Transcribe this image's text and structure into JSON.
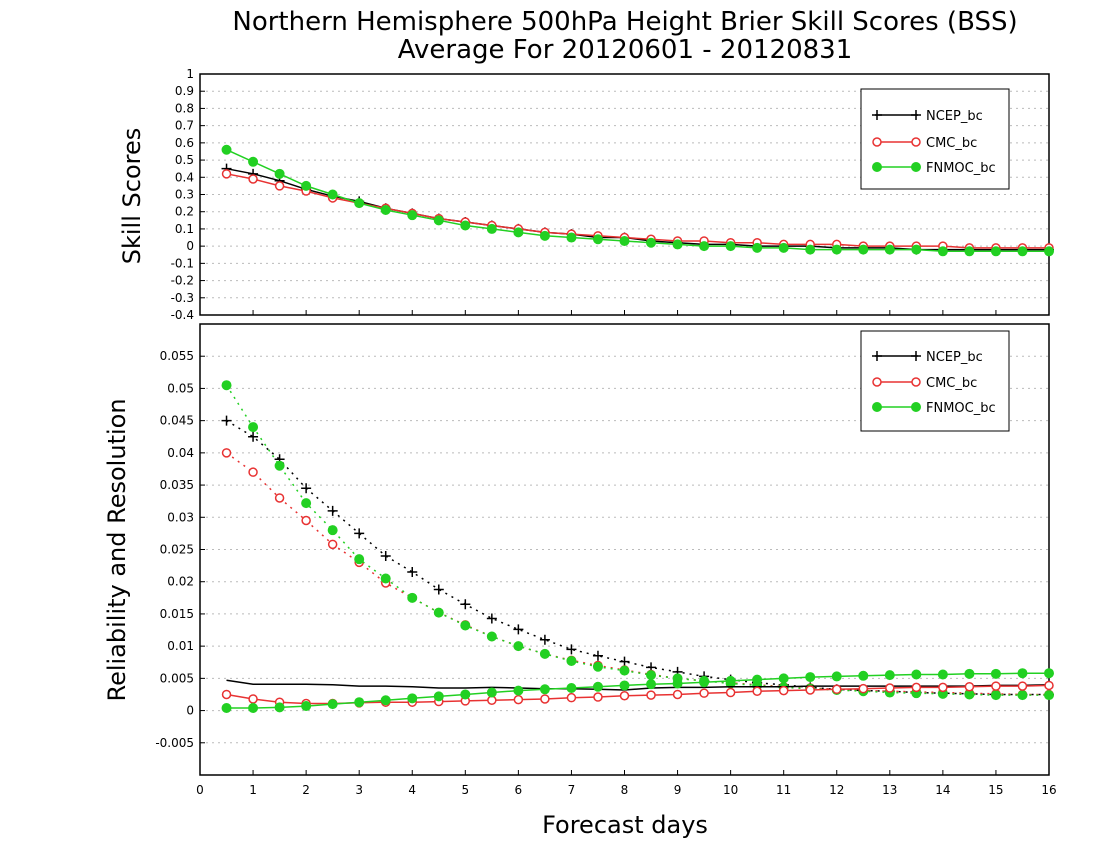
{
  "title": {
    "line1": "Northern Hemisphere 500hPa Height Brier Skill Scores (BSS)",
    "line2": "Average For 20120601 - 20120831"
  },
  "colors": {
    "NCEP_bc": "#000000",
    "CMC_bc": "#e83232",
    "FNMOC_bc": "#22d022"
  },
  "chart_data": [
    {
      "type": "line",
      "ylabel": "Skill Scores",
      "xlabel": "",
      "xlim": [
        0,
        16
      ],
      "ylim": [
        -0.4,
        1
      ],
      "xticks": [
        "0",
        "1",
        "2",
        "3",
        "4",
        "5",
        "6",
        "7",
        "8",
        "9",
        "10",
        "11",
        "12",
        "13",
        "14",
        "15",
        "16"
      ],
      "yticks": [
        "-0.4",
        "-0.3",
        "-0.2",
        "-0.1",
        "0",
        "0.1",
        "0.2",
        "0.3",
        "0.4",
        "0.5",
        "0.6",
        "0.7",
        "0.8",
        "0.9",
        "1"
      ],
      "grid": true,
      "legend_position": "top-right",
      "x": [
        0.5,
        1,
        1.5,
        2,
        2.5,
        3,
        3.5,
        4,
        4.5,
        5,
        5.5,
        6,
        6.5,
        7,
        7.5,
        8,
        8.5,
        9,
        9.5,
        10,
        10.5,
        11,
        11.5,
        12,
        12.5,
        13,
        13.5,
        14,
        14.5,
        15,
        15.5,
        16
      ],
      "series": [
        {
          "name": "NCEP_bc",
          "marker": "plus",
          "line": "solid",
          "values": [
            0.45,
            0.42,
            0.38,
            0.33,
            0.29,
            0.26,
            0.22,
            0.19,
            0.16,
            0.14,
            0.12,
            0.1,
            0.08,
            0.07,
            0.05,
            0.05,
            0.03,
            0.02,
            0.01,
            0.01,
            0.0,
            0.0,
            0.0,
            -0.01,
            -0.01,
            -0.01,
            -0.02,
            -0.02,
            -0.02,
            -0.02,
            -0.02,
            -0.02
          ]
        },
        {
          "name": "CMC_bc",
          "marker": "open-circle",
          "line": "solid",
          "values": [
            0.42,
            0.39,
            0.35,
            0.32,
            0.28,
            0.25,
            0.22,
            0.19,
            0.16,
            0.14,
            0.12,
            0.1,
            0.08,
            0.07,
            0.06,
            0.05,
            0.04,
            0.03,
            0.03,
            0.02,
            0.02,
            0.01,
            0.01,
            0.01,
            0.0,
            0.0,
            0.0,
            0.0,
            -0.01,
            -0.01,
            -0.01,
            -0.01
          ]
        },
        {
          "name": "FNMOC_bc",
          "marker": "filled-circle",
          "line": "solid",
          "values": [
            0.56,
            0.49,
            0.42,
            0.35,
            0.3,
            0.25,
            0.21,
            0.18,
            0.15,
            0.12,
            0.1,
            0.08,
            0.06,
            0.05,
            0.04,
            0.03,
            0.02,
            0.01,
            0.0,
            0.0,
            -0.01,
            -0.01,
            -0.02,
            -0.02,
            -0.02,
            -0.02,
            -0.02,
            -0.03,
            -0.03,
            -0.03,
            -0.03,
            -0.03
          ]
        }
      ]
    },
    {
      "type": "line",
      "ylabel": "Reliability and Resolution",
      "xlabel": "Forecast days",
      "xlim": [
        0,
        16
      ],
      "ylim": [
        -0.01,
        0.06
      ],
      "xticks": [
        "0",
        "1",
        "2",
        "3",
        "4",
        "5",
        "6",
        "7",
        "8",
        "9",
        "10",
        "11",
        "12",
        "13",
        "14",
        "15",
        "16"
      ],
      "yticks": [
        "-0.005",
        "0",
        "0.005",
        "0.01",
        "0.015",
        "0.02",
        "0.025",
        "0.03",
        "0.035",
        "0.04",
        "0.045",
        "0.05",
        "0.055"
      ],
      "grid": true,
      "legend_position": "top-right",
      "x": [
        0.5,
        1,
        1.5,
        2,
        2.5,
        3,
        3.5,
        4,
        4.5,
        5,
        5.5,
        6,
        6.5,
        7,
        7.5,
        8,
        8.5,
        9,
        9.5,
        10,
        10.5,
        11,
        11.5,
        12,
        12.5,
        13,
        13.5,
        14,
        14.5,
        15,
        15.5,
        16
      ],
      "series": [
        {
          "name": "NCEP_bc",
          "marker": "plus",
          "line": "dotted",
          "values": [
            0.045,
            0.0425,
            0.039,
            0.0345,
            0.031,
            0.0275,
            0.024,
            0.0215,
            0.0188,
            0.0165,
            0.0143,
            0.0126,
            0.011,
            0.0095,
            0.0085,
            0.0076,
            0.0067,
            0.006,
            0.0053,
            0.0048,
            0.0043,
            0.004,
            0.0036,
            0.0033,
            0.0031,
            0.003,
            0.0028,
            0.0027,
            0.0026,
            0.0025,
            0.0025,
            0.0025
          ]
        },
        {
          "name": "CMC_bc",
          "marker": "open-circle",
          "line": "dotted",
          "values": [
            0.04,
            0.037,
            0.033,
            0.0295,
            0.0258,
            0.023,
            0.0198,
            0.0175,
            0.0152,
            0.0133,
            0.0115,
            0.01,
            0.0088,
            0.0078,
            0.007,
            0.0063,
            0.0056,
            0.005,
            0.0046,
            0.0043,
            0.004,
            0.0037,
            0.0035,
            0.0033,
            0.0031,
            0.003,
            0.0029,
            0.0028,
            0.0027,
            0.0026,
            0.0025,
            0.0025
          ]
        },
        {
          "name": "FNMOC_bc",
          "marker": "filled-circle",
          "line": "dotted",
          "values": [
            0.0505,
            0.044,
            0.038,
            0.0322,
            0.028,
            0.0235,
            0.0205,
            0.0175,
            0.0152,
            0.0132,
            0.0115,
            0.01,
            0.0088,
            0.0077,
            0.0068,
            0.0062,
            0.0055,
            0.005,
            0.0046,
            0.0042,
            0.0039,
            0.0036,
            0.0034,
            0.0032,
            0.003,
            0.0028,
            0.0027,
            0.0026,
            0.0025,
            0.0024,
            0.0024,
            0.0024
          ]
        },
        {
          "name": "NCEP_bc",
          "marker": "none",
          "line": "solid",
          "values": [
            0.0047,
            0.0041,
            0.0041,
            0.0041,
            0.004,
            0.0038,
            0.0038,
            0.0037,
            0.0035,
            0.0035,
            0.0036,
            0.0035,
            0.0034,
            0.0034,
            0.0033,
            0.0032,
            0.0035,
            0.0036,
            0.0036,
            0.0037,
            0.0037,
            0.0037,
            0.0038,
            0.0038,
            0.0038,
            0.0038,
            0.0038,
            0.0038,
            0.0038,
            0.0039,
            0.0039,
            0.004
          ]
        },
        {
          "name": "CMC_bc",
          "marker": "open-circle",
          "line": "solid",
          "values": [
            0.0025,
            0.0018,
            0.0013,
            0.0011,
            0.0011,
            0.0012,
            0.0013,
            0.0013,
            0.0014,
            0.0015,
            0.0016,
            0.0017,
            0.0018,
            0.002,
            0.0021,
            0.0023,
            0.0024,
            0.0025,
            0.0027,
            0.0028,
            0.003,
            0.0031,
            0.0032,
            0.0033,
            0.0034,
            0.0035,
            0.0036,
            0.0036,
            0.0037,
            0.0038,
            0.0038,
            0.0039
          ]
        },
        {
          "name": "FNMOC_bc",
          "marker": "filled-circle",
          "line": "solid",
          "values": [
            0.0004,
            0.0004,
            0.0005,
            0.0007,
            0.001,
            0.0013,
            0.0016,
            0.0019,
            0.0022,
            0.0025,
            0.0028,
            0.0031,
            0.0033,
            0.0035,
            0.0037,
            0.0039,
            0.0041,
            0.0042,
            0.0044,
            0.0046,
            0.0048,
            0.005,
            0.0052,
            0.0053,
            0.0054,
            0.0055,
            0.0056,
            0.0056,
            0.0057,
            0.0057,
            0.0058,
            0.0058
          ]
        }
      ]
    }
  ]
}
